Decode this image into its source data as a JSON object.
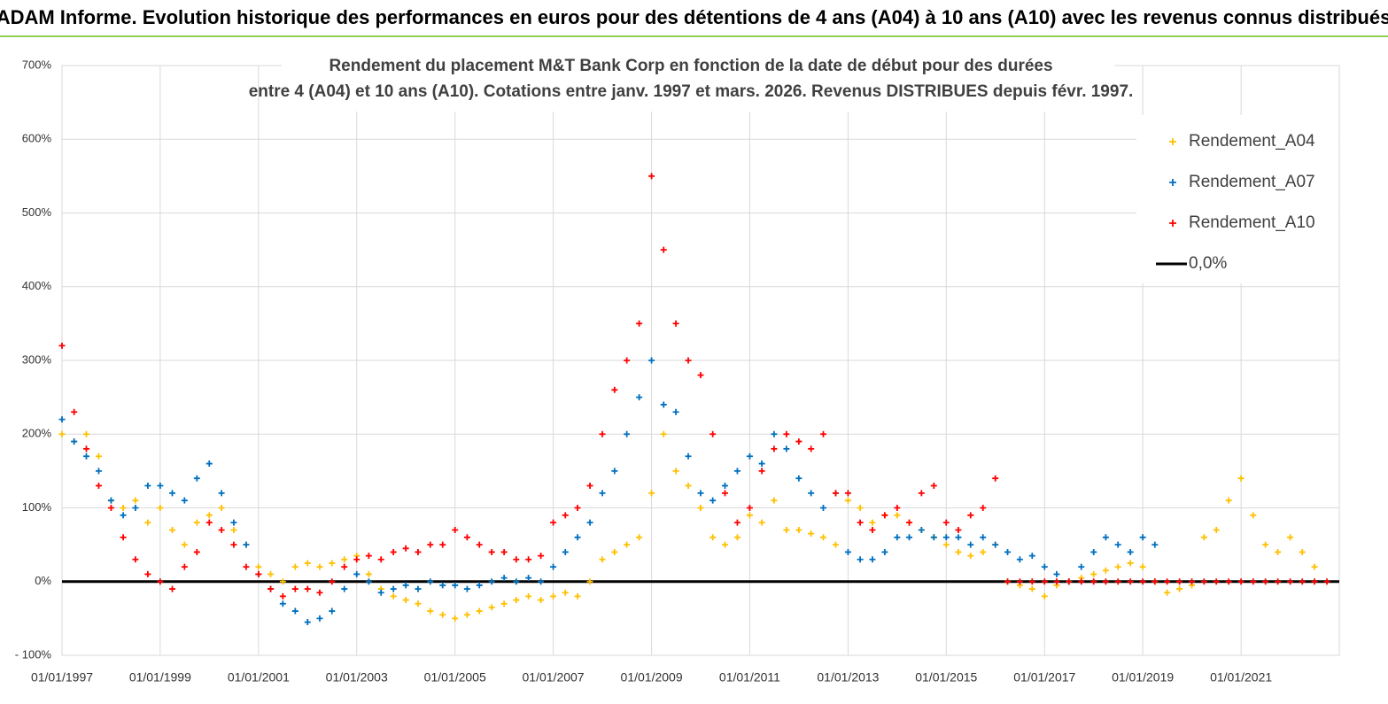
{
  "chart_data": {
    "type": "scatter",
    "header": "ADAM Informe. Evolution historique des performances en euros pour des détentions de 4 ans (A04) à 10 ans (A10) avec les revenus connus distribués",
    "title": "Rendement du placement M&T Bank Corp en fonction de la date de début pour des durées",
    "subtitle": "entre 4 (A04) et 10 ans (A10).  Cotations entre janv. 1997 et mars. 2026. Revenus DISTRIBUES depuis févr. 1997.",
    "xlim": [
      "1997-01-01",
      "2023-01-01"
    ],
    "xticks": [
      {
        "value": "1997-01-01",
        "label": "01/01/1997"
      },
      {
        "value": "1999-01-01",
        "label": "01/01/1999"
      },
      {
        "value": "2001-01-01",
        "label": "01/01/2001"
      },
      {
        "value": "2003-01-01",
        "label": "01/01/2003"
      },
      {
        "value": "2005-01-01",
        "label": "01/01/2005"
      },
      {
        "value": "2007-01-01",
        "label": "01/01/2007"
      },
      {
        "value": "2009-01-01",
        "label": "01/01/2009"
      },
      {
        "value": "2011-01-01",
        "label": "01/01/2011"
      },
      {
        "value": "2013-01-01",
        "label": "01/01/2013"
      },
      {
        "value": "2015-01-01",
        "label": "01/01/2015"
      },
      {
        "value": "2017-01-01",
        "label": "01/01/2017"
      },
      {
        "value": "2019-01-01",
        "label": "01/01/2019"
      },
      {
        "value": "2021-01-01",
        "label": "01/01/2021"
      }
    ],
    "ylim": [
      -100,
      700
    ],
    "yticks": [
      {
        "value": -100,
        "label": "- 100%"
      },
      {
        "value": 0,
        "label": "0%"
      },
      {
        "value": 100,
        "label": "100%"
      },
      {
        "value": 200,
        "label": "200%"
      },
      {
        "value": 300,
        "label": "300%"
      },
      {
        "value": 400,
        "label": "400%"
      },
      {
        "value": 500,
        "label": "500%"
      },
      {
        "value": 600,
        "label": "600%"
      },
      {
        "value": 700,
        "label": "700%"
      }
    ],
    "grid": true,
    "legend": "top-right",
    "x": [
      "1997-01-01",
      "1997-04-01",
      "1997-07-01",
      "1997-10-01",
      "1998-01-01",
      "1998-04-01",
      "1998-07-01",
      "1998-10-01",
      "1999-01-01",
      "1999-04-01",
      "1999-07-01",
      "1999-10-01",
      "2000-01-01",
      "2000-04-01",
      "2000-07-01",
      "2000-10-01",
      "2001-01-01",
      "2001-04-01",
      "2001-07-01",
      "2001-10-01",
      "2002-01-01",
      "2002-04-01",
      "2002-07-01",
      "2002-10-01",
      "2003-01-01",
      "2003-04-01",
      "2003-07-01",
      "2003-10-01",
      "2004-01-01",
      "2004-04-01",
      "2004-07-01",
      "2004-10-01",
      "2005-01-01",
      "2005-04-01",
      "2005-07-01",
      "2005-10-01",
      "2006-01-01",
      "2006-04-01",
      "2006-07-01",
      "2006-10-01",
      "2007-01-01",
      "2007-04-01",
      "2007-07-01",
      "2007-10-01",
      "2008-01-01",
      "2008-04-01",
      "2008-07-01",
      "2008-10-01",
      "2009-01-01",
      "2009-04-01",
      "2009-07-01",
      "2009-10-01",
      "2010-01-01",
      "2010-04-01",
      "2010-07-01",
      "2010-10-01",
      "2011-01-01",
      "2011-04-01",
      "2011-07-01",
      "2011-10-01",
      "2012-01-01",
      "2012-04-01",
      "2012-07-01",
      "2012-10-01",
      "2013-01-01",
      "2013-04-01",
      "2013-07-01",
      "2013-10-01",
      "2014-01-01",
      "2014-04-01",
      "2014-07-01",
      "2014-10-01",
      "2015-01-01",
      "2015-04-01",
      "2015-07-01",
      "2015-10-01",
      "2016-01-01",
      "2016-04-01",
      "2016-07-01",
      "2016-10-01",
      "2017-01-01",
      "2017-04-01",
      "2017-07-01",
      "2017-10-01",
      "2018-01-01",
      "2018-04-01",
      "2018-07-01",
      "2018-10-01",
      "2019-01-01",
      "2019-04-01",
      "2019-07-01",
      "2019-10-01",
      "2020-01-01",
      "2020-04-01",
      "2020-07-01",
      "2020-10-01",
      "2021-01-01",
      "2021-04-01",
      "2021-07-01",
      "2021-10-01",
      "2022-01-01",
      "2022-04-01",
      "2022-07-01",
      "2022-10-01"
    ],
    "series": [
      {
        "name": "Rendement_A04",
        "color": "#ffc000",
        "values": [
          200,
          190,
          200,
          170,
          110,
          100,
          110,
          80,
          100,
          70,
          50,
          80,
          90,
          100,
          70,
          50,
          20,
          10,
          0,
          20,
          25,
          20,
          25,
          30,
          35,
          10,
          -10,
          -20,
          -25,
          -30,
          -40,
          -45,
          -50,
          -45,
          -40,
          -35,
          -30,
          -25,
          -20,
          -25,
          -20,
          -15,
          -20,
          0,
          30,
          40,
          50,
          60,
          120,
          200,
          150,
          130,
          100,
          60,
          50,
          60,
          90,
          80,
          110,
          70,
          70,
          65,
          60,
          50,
          110,
          100,
          80,
          90,
          90,
          80,
          70,
          60,
          50,
          40,
          35,
          40,
          50,
          0,
          -5,
          -10,
          -20,
          -5,
          0,
          5,
          10,
          15,
          20,
          25,
          20,
          0,
          -15,
          -10,
          -5,
          60,
          70,
          110,
          140,
          90,
          50,
          40,
          60,
          40,
          20,
          null
        ]
      },
      {
        "name": "Rendement_A07",
        "color": "#0070c0",
        "values": [
          220,
          190,
          170,
          150,
          110,
          90,
          100,
          130,
          130,
          120,
          110,
          140,
          160,
          120,
          80,
          50,
          10,
          -10,
          -30,
          -40,
          -55,
          -50,
          -40,
          -10,
          10,
          0,
          -15,
          -10,
          -5,
          -10,
          0,
          -5,
          -5,
          -10,
          -5,
          0,
          5,
          0,
          5,
          0,
          20,
          40,
          60,
          80,
          120,
          150,
          200,
          250,
          300,
          240,
          230,
          170,
          120,
          110,
          130,
          150,
          170,
          160,
          200,
          180,
          140,
          120,
          100,
          120,
          40,
          30,
          30,
          40,
          60,
          60,
          70,
          60,
          60,
          60,
          50,
          60,
          50,
          40,
          30,
          35,
          20,
          10,
          0,
          20,
          40,
          60,
          50,
          40,
          60,
          50,
          null,
          null,
          null,
          null,
          null,
          null,
          null,
          null,
          null,
          null,
          null,
          null,
          null,
          null
        ]
      },
      {
        "name": "Rendement_A10",
        "color": "#ff0000",
        "values": [
          320,
          230,
          180,
          130,
          100,
          60,
          30,
          10,
          0,
          -10,
          20,
          40,
          80,
          70,
          50,
          20,
          10,
          -10,
          -20,
          -10,
          -10,
          -15,
          0,
          20,
          30,
          35,
          30,
          40,
          45,
          40,
          50,
          50,
          70,
          60,
          50,
          40,
          40,
          30,
          30,
          35,
          80,
          90,
          100,
          130,
          200,
          260,
          300,
          350,
          550,
          450,
          350,
          300,
          280,
          200,
          120,
          80,
          100,
          150,
          180,
          200,
          190,
          180,
          200,
          120,
          120,
          80,
          70,
          90,
          100,
          80,
          120,
          130,
          80,
          70,
          90,
          100,
          140,
          0,
          0,
          0,
          0,
          0,
          0,
          0,
          0,
          0,
          0,
          0,
          0,
          0,
          0,
          0,
          0,
          0,
          0,
          0,
          0,
          0,
          0,
          0,
          0,
          0,
          0,
          0
        ]
      }
    ],
    "reference_line": {
      "name": "0,0%",
      "value": 0,
      "color": "#000000"
    }
  }
}
